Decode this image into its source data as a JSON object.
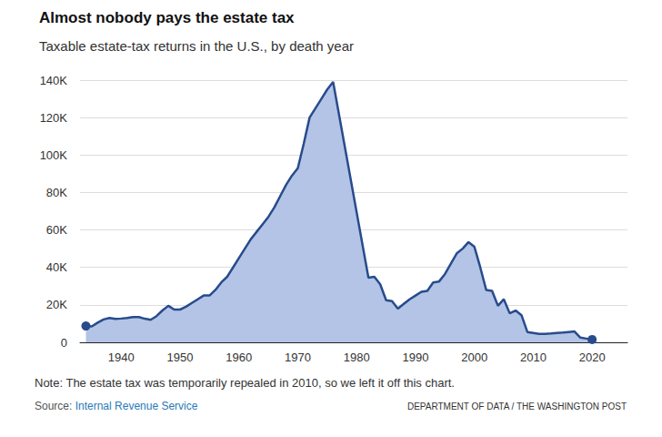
{
  "chart_data": {
    "type": "line",
    "title": "Almost nobody pays the estate tax",
    "subtitle": "Taxable estate-tax returns in the U.S., by death year",
    "note": "Note: The estate tax was temporarily repealed in 2010, so we left it off this chart.",
    "source_label": "Source:",
    "source": "Internal Revenue Service",
    "credit": "DEPARTMENT OF DATA / THE WASHINGTON POST",
    "x": [
      1934,
      1935,
      1936,
      1937,
      1938,
      1939,
      1940,
      1941,
      1942,
      1943,
      1944,
      1945,
      1946,
      1947,
      1948,
      1949,
      1950,
      1951,
      1952,
      1953,
      1954,
      1955,
      1956,
      1957,
      1958,
      1959,
      1960,
      1961,
      1962,
      1963,
      1964,
      1965,
      1966,
      1967,
      1968,
      1969,
      1970,
      1971,
      1972,
      1973,
      1974,
      1975,
      1976,
      1982,
      1983,
      1984,
      1985,
      1986,
      1987,
      1988,
      1989,
      1990,
      1991,
      1992,
      1993,
      1994,
      1995,
      1996,
      1997,
      1998,
      1999,
      2000,
      2001,
      2002,
      2003,
      2004,
      2005,
      2006,
      2007,
      2008,
      2009,
      2011,
      2012,
      2013,
      2014,
      2015,
      2016,
      2017,
      2018,
      2019,
      2020
    ],
    "values": [
      8700,
      8500,
      10500,
      12200,
      13000,
      12500,
      12700,
      13000,
      13500,
      13500,
      12600,
      12000,
      14000,
      17000,
      19500,
      17500,
      17500,
      19000,
      21000,
      23000,
      25000,
      25000,
      28000,
      32000,
      35000,
      40000,
      45000,
      50000,
      55000,
      59000,
      63000,
      67000,
      72000,
      78000,
      84000,
      89000,
      93000,
      106000,
      120000,
      125000,
      130000,
      135000,
      139000,
      34500,
      35000,
      31000,
      22500,
      22000,
      18000,
      20500,
      23000,
      25000,
      27000,
      27500,
      32000,
      32500,
      36500,
      42000,
      47500,
      50000,
      53500,
      51000,
      40000,
      28000,
      27500,
      19500,
      23000,
      15500,
      17000,
      14500,
      5500,
      4500,
      4500,
      4700,
      5000,
      5200,
      5500,
      5800,
      2500,
      2000,
      1500
    ],
    "color": "#284b8c",
    "marker": "endpoints",
    "xlim": [
      1933,
      2026
    ],
    "xticks": [
      1940,
      1950,
      1960,
      1970,
      1980,
      1990,
      2000,
      2010,
      2020
    ],
    "ylim": [
      0,
      140000
    ],
    "yticks": [
      0,
      {
        "value": 20000,
        "label": "20K"
      },
      {
        "value": 40000,
        "label": "40K"
      },
      {
        "value": 60000,
        "label": "60K"
      },
      {
        "value": 80000,
        "label": "80K"
      },
      {
        "value": 100000,
        "label": "100K"
      },
      {
        "value": 120000,
        "label": "120K"
      },
      {
        "value": 140000,
        "label": "140K"
      }
    ],
    "grid": true
  }
}
